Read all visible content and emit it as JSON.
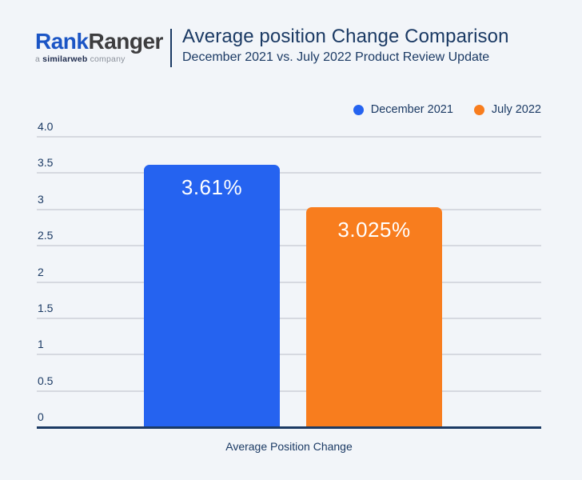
{
  "header": {
    "logo": {
      "part1": "Rank",
      "part2": "Ranger",
      "tagline_prefix": "a ",
      "tagline_bold": "similarweb",
      "tagline_suffix": " company"
    },
    "title": "Average position Change Comparison",
    "subtitle": "December 2021 vs. July 2022 Product Review Update"
  },
  "colors": {
    "background": "#f2f5f9",
    "navy_text": "#1b3a64",
    "gridline": "#d6d9e0",
    "logo_blue": "#1b55c5",
    "logo_dark": "#3d3d3f",
    "bar_blue": "#2563f0",
    "bar_orange": "#f87d1e"
  },
  "chart_data": {
    "type": "bar",
    "title": "Average position Change Comparison",
    "subtitle": "December 2021 vs. July 2022 Product Review Update",
    "xlabel": "Average Position Change",
    "ylabel": "",
    "ylim": [
      0,
      4.0
    ],
    "grid": true,
    "legend_position": "top-right",
    "categories": [
      "Average Position Change"
    ],
    "yticks": [
      {
        "value": 4.0,
        "label": "4.0"
      },
      {
        "value": 3.5,
        "label": "3.5"
      },
      {
        "value": 3.0,
        "label": "3"
      },
      {
        "value": 2.5,
        "label": "2.5"
      },
      {
        "value": 2.0,
        "label": "2"
      },
      {
        "value": 1.5,
        "label": "1.5"
      },
      {
        "value": 1.0,
        "label": "1"
      },
      {
        "value": 0.5,
        "label": "0.5"
      },
      {
        "value": 0.0,
        "label": "0"
      }
    ],
    "series": [
      {
        "name": "December 2021",
        "values": [
          3.61
        ],
        "data_label": "3.61%",
        "color": "#2563f0"
      },
      {
        "name": "July 2022",
        "values": [
          3.025
        ],
        "data_label": "3.025%",
        "color": "#f87d1e"
      }
    ]
  }
}
